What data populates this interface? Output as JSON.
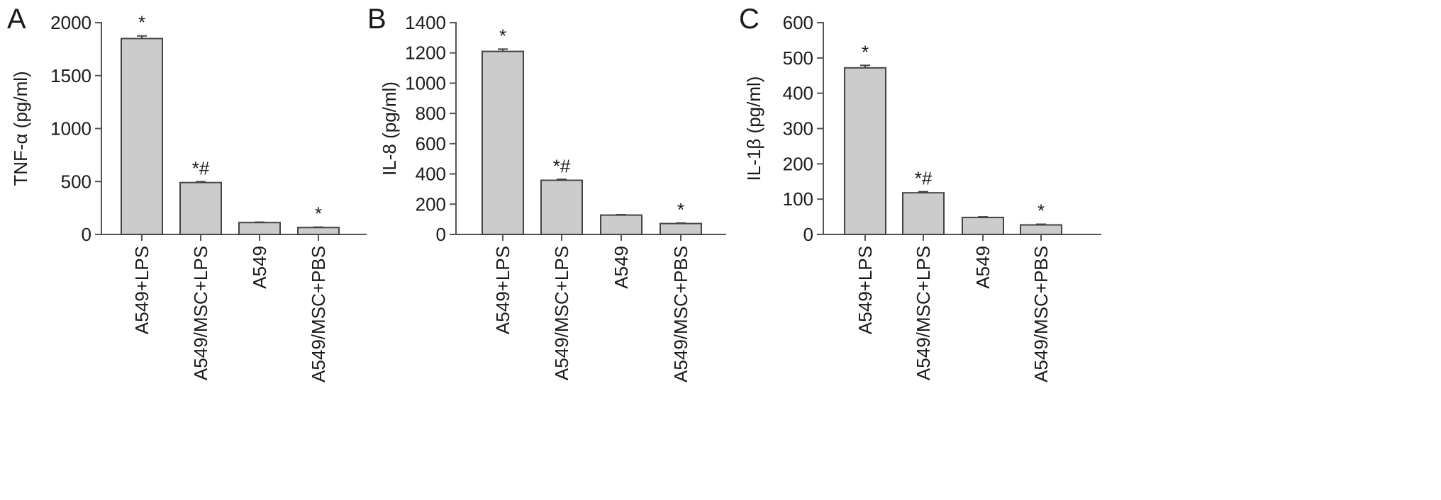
{
  "chart_data": [
    {
      "type": "bar",
      "panel_label": "A",
      "ylabel": "TNF-α (pg/ml)",
      "categories": [
        "A549+LPS",
        "A549/MSC+LPS",
        "A549",
        "A549/MSC+PBS"
      ],
      "values": [
        1850,
        490,
        112,
        65
      ],
      "errors": [
        25,
        8,
        4,
        4
      ],
      "annotations": [
        "*",
        "*#",
        "",
        "*"
      ],
      "ylim": [
        0,
        2000
      ],
      "yticks": [
        0,
        500,
        1000,
        1500,
        2000
      ],
      "bar_color": "#cccccc",
      "grid": false
    },
    {
      "type": "bar",
      "panel_label": "B",
      "ylabel": "IL-8 (pg/ml)",
      "categories": [
        "A549+LPS",
        "A549/MSC+LPS",
        "A549",
        "A549/MSC+PBS"
      ],
      "values": [
        1210,
        358,
        128,
        72
      ],
      "errors": [
        15,
        6,
        3,
        3
      ],
      "annotations": [
        "*",
        "*#",
        "",
        "*"
      ],
      "ylim": [
        0,
        1400
      ],
      "yticks": [
        0,
        200,
        400,
        600,
        800,
        1000,
        1200,
        1400
      ],
      "bar_color": "#cccccc",
      "grid": false
    },
    {
      "type": "bar",
      "panel_label": "C",
      "ylabel": "IL-1β (pg/ml)",
      "categories": [
        "A549+LPS",
        "A549/MSC+LPS",
        "A549",
        "A549/MSC+PBS"
      ],
      "values": [
        472,
        118,
        48,
        27
      ],
      "errors": [
        7,
        3,
        2,
        2
      ],
      "annotations": [
        "*",
        "*#",
        "",
        "*"
      ],
      "ylim": [
        0,
        600
      ],
      "yticks": [
        0,
        100,
        200,
        300,
        400,
        500,
        600
      ],
      "bar_color": "#cccccc",
      "grid": false
    }
  ]
}
